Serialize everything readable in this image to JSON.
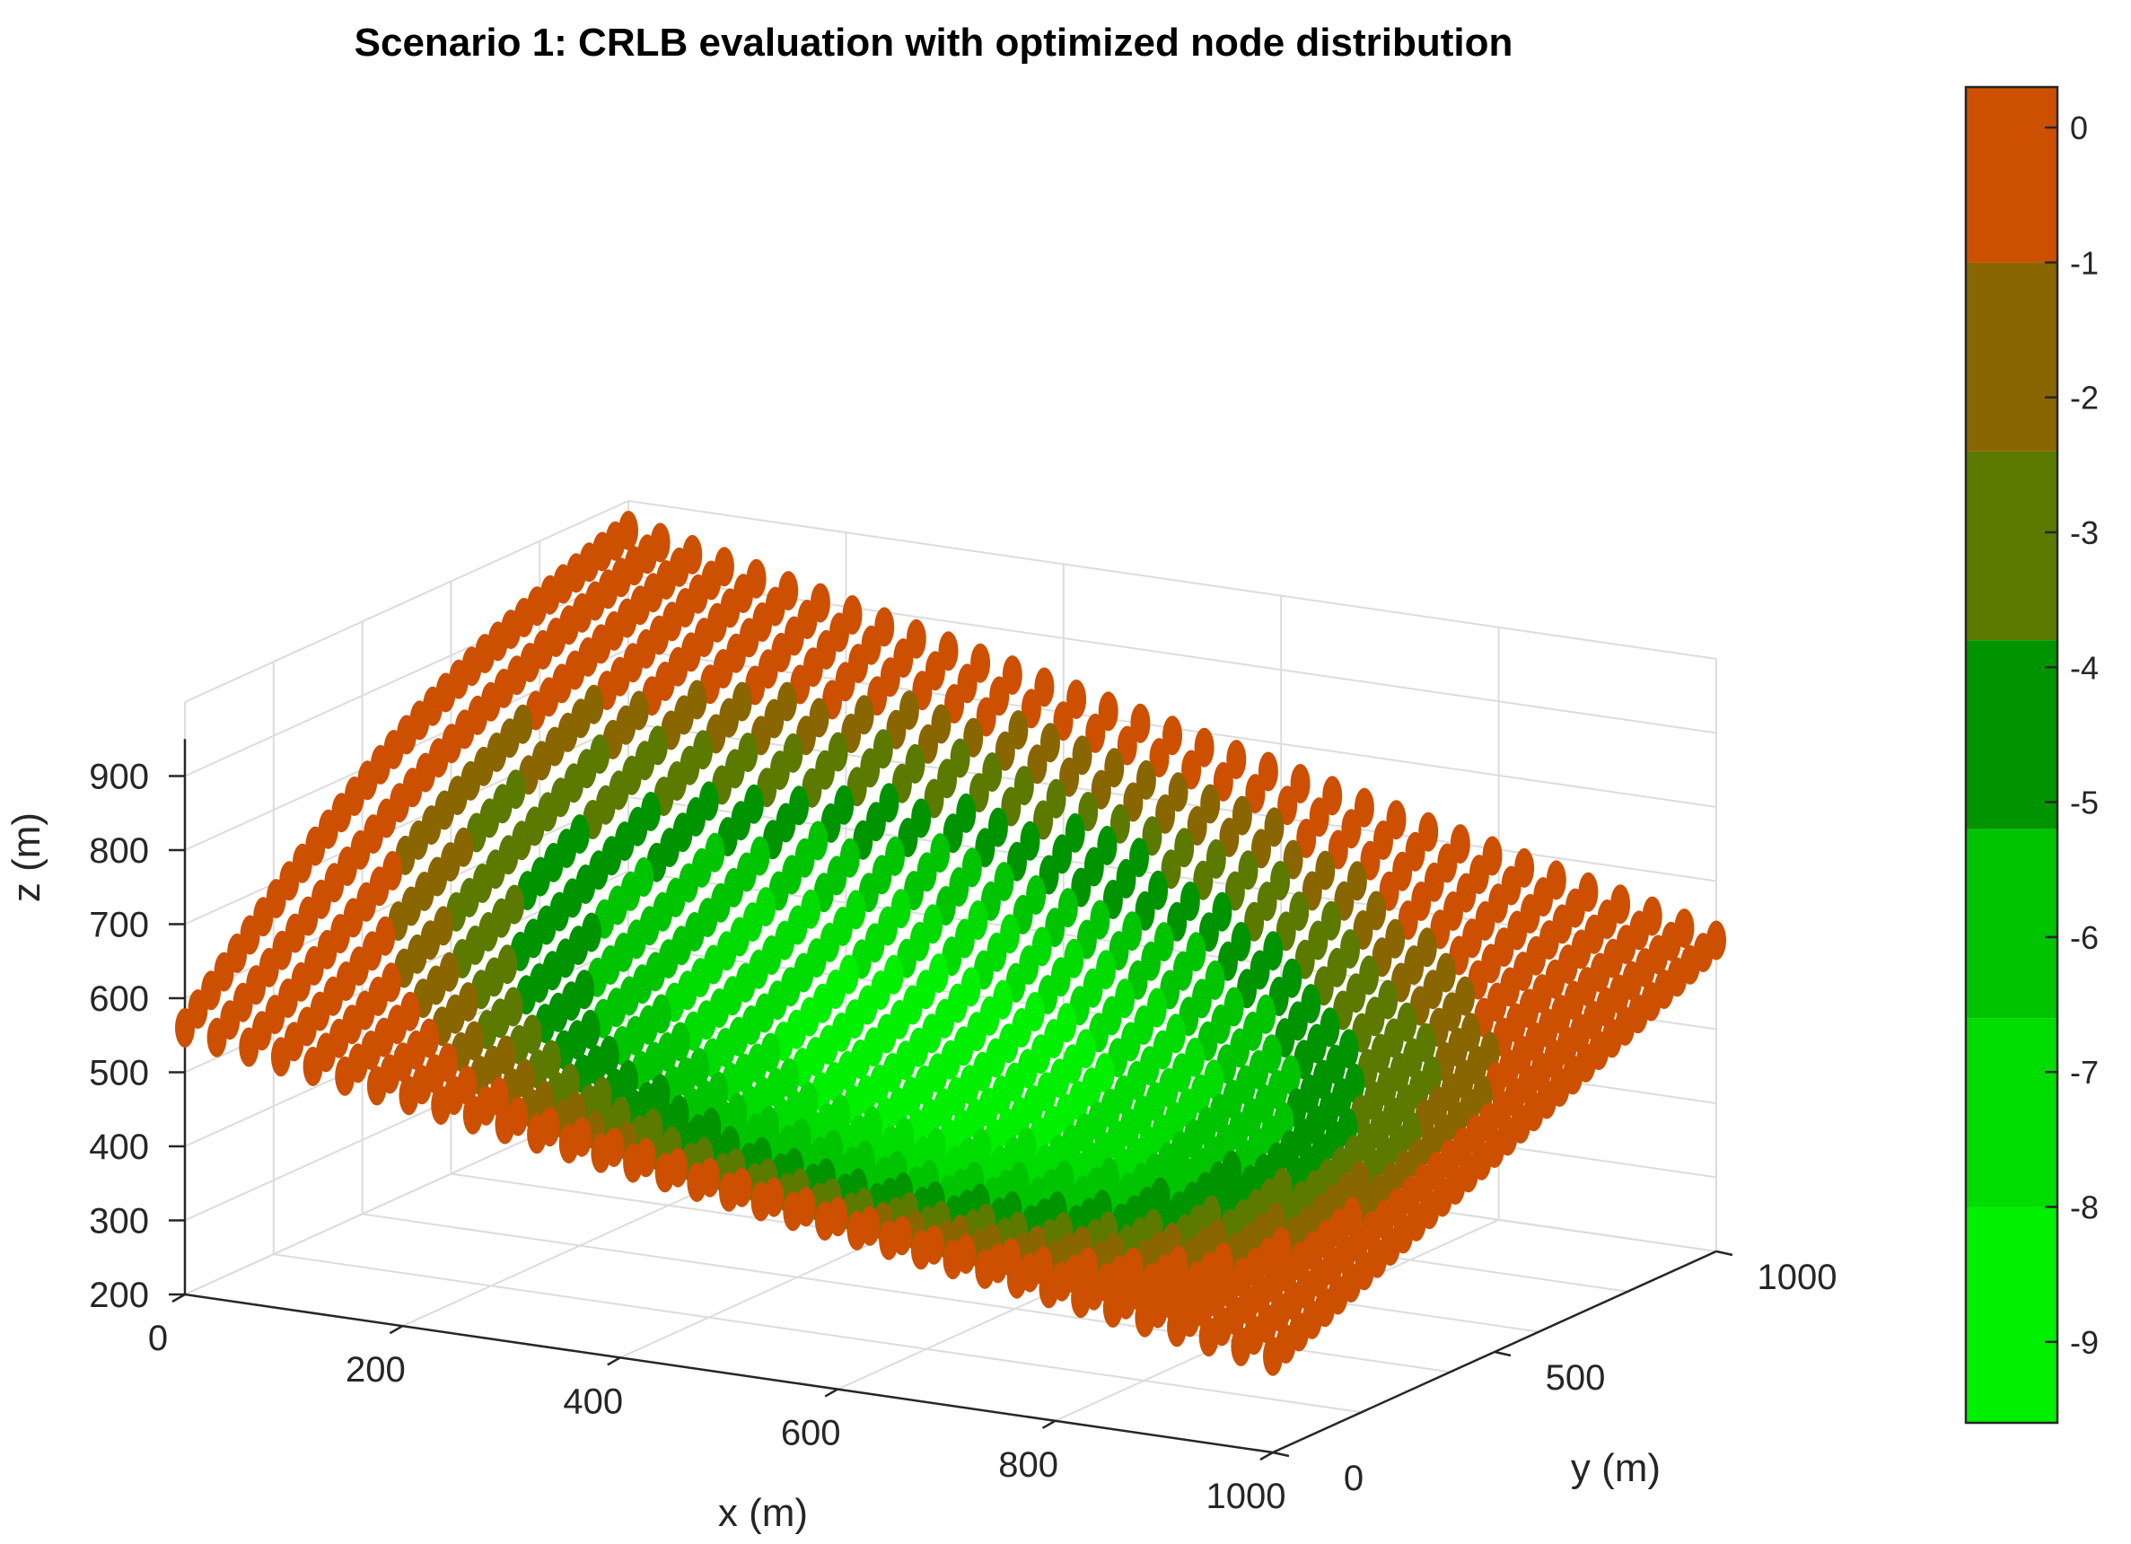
{
  "chart_data": {
    "type": "scatter3d",
    "title": "Scenario 1: CRLB evaluation with optimized node distribution",
    "xlabel": "x (m)",
    "ylabel": "y (m)",
    "zlabel": "z (m)",
    "xlim": [
      0,
      1000
    ],
    "ylim": [
      0,
      1000
    ],
    "zlim": [
      200,
      1000
    ],
    "xticks": [
      "0",
      "200",
      "400",
      "600",
      "800",
      "1000"
    ],
    "yticks": [
      "0",
      "500",
      "1000"
    ],
    "zticks": [
      "200",
      "300",
      "400",
      "500",
      "600",
      "700",
      "800",
      "900"
    ],
    "grid": true,
    "surface_model": {
      "description": "Curved sheet of sensor-node evaluation points; z(x,y) saddle-like, color = log10 CRLB",
      "z_corners_m": {
        "x0_y0": 560,
        "x1000_y0": 330,
        "x0_y1000": 960,
        "x1000_y1000": 620
      },
      "min_color_value_center": -9,
      "edge_value": 0
    },
    "colorbar": {
      "levels": [
        0,
        -1,
        -2,
        -3,
        -4,
        -5,
        -6,
        -7,
        -8,
        -9
      ],
      "range": [
        -9.6,
        0.3
      ],
      "bands": [
        {
          "from": -1,
          "to": 0.3,
          "color": "#cc5000"
        },
        {
          "from": -2.4,
          "to": -1,
          "color": "#8a6600"
        },
        {
          "from": -3.8,
          "to": -2.4,
          "color": "#5c7a00"
        },
        {
          "from": -5.2,
          "to": -3.8,
          "color": "#009400"
        },
        {
          "from": -6.6,
          "to": -5.2,
          "color": "#00c400"
        },
        {
          "from": -8.0,
          "to": -6.6,
          "color": "#00dc00"
        },
        {
          "from": -9.6,
          "to": -8.0,
          "color": "#00f000"
        }
      ]
    }
  }
}
